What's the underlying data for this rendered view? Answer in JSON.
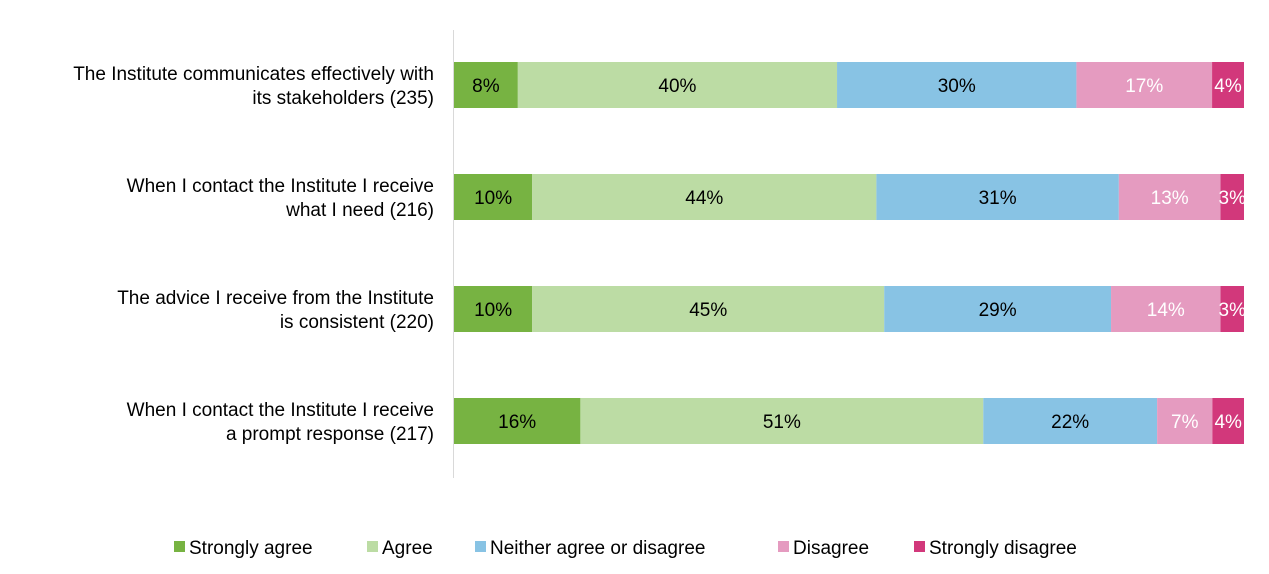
{
  "chart_data": {
    "type": "bar",
    "orientation": "horizontal",
    "stacked": true,
    "normalized": true,
    "categories": [
      "The Institute communicates effectively with its stakeholders (235)",
      "When I contact the Institute I receive what I need (216)",
      "The advice I receive from the Institute is consistent (220)",
      "When I contact the Institute I receive a prompt response (217)"
    ],
    "category_lines": [
      [
        "The Institute communicates effectively with",
        "its stakeholders (235)"
      ],
      [
        "When I contact the Institute I receive",
        "what I need (216)"
      ],
      [
        "The advice I receive from the Institute",
        "is consistent (220)"
      ],
      [
        "When I contact the Institute I receive",
        "a prompt response (217)"
      ]
    ],
    "series": [
      {
        "name": "Strongly agree",
        "color": "#77b342",
        "label_color": "#000000",
        "values": [
          8,
          10,
          10,
          16
        ]
      },
      {
        "name": "Agree",
        "color": "#bcdca4",
        "label_color": "#000000",
        "values": [
          40,
          44,
          45,
          51
        ]
      },
      {
        "name": "Neither agree or disagree",
        "color": "#88c3e4",
        "label_color": "#000000",
        "values": [
          30,
          31,
          29,
          22
        ]
      },
      {
        "name": "Disagree",
        "color": "#e59bc0",
        "label_color": "#ffffff",
        "values": [
          17,
          13,
          14,
          7
        ]
      },
      {
        "name": "Strongly disagree",
        "color": "#d2387b",
        "label_color": "#ffffff",
        "values": [
          4,
          3,
          3,
          4
        ]
      }
    ],
    "data_labels": [
      [
        "8%",
        "40%",
        "30%",
        "17%",
        "4%"
      ],
      [
        "10%",
        "44%",
        "31%",
        "13%",
        "3%"
      ],
      [
        "10%",
        "45%",
        "29%",
        "14%",
        "3%"
      ],
      [
        "16%",
        "51%",
        "22%",
        "7%",
        "4%"
      ]
    ],
    "xlim": [
      0,
      100
    ],
    "xlabel": "",
    "ylabel": "",
    "grid": false,
    "legend_position": "bottom"
  }
}
